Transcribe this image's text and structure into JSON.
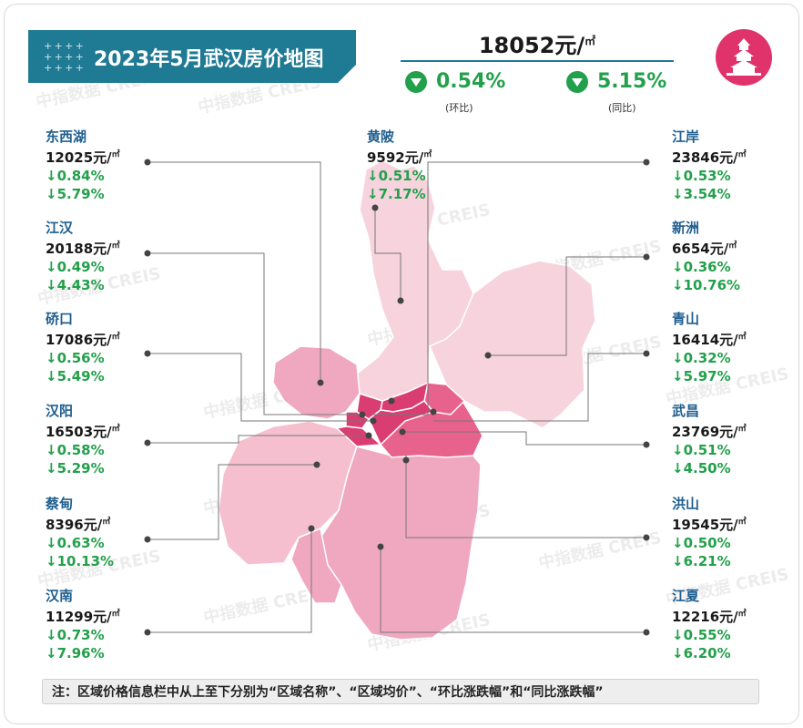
{
  "title": "2023年5月武汉房价地图",
  "overall": {
    "price_value": "18052元/",
    "price_unit": "㎡",
    "mom_value": "0.54%",
    "mom_label": "(环比)",
    "yoy_value": "5.15%",
    "yoy_label": "(同比)"
  },
  "districts_left": [
    {
      "name": "东西湖",
      "price": "12025元/",
      "unit": "㎡",
      "mom": "↓0.84%",
      "yoy": "↓5.79%"
    },
    {
      "name": "江汉",
      "price": "20188元/",
      "unit": "㎡",
      "mom": "↓0.49%",
      "yoy": "↓4.43%"
    },
    {
      "name": "硚口",
      "price": "17086元/",
      "unit": "㎡",
      "mom": "↓0.56%",
      "yoy": "↓5.49%"
    },
    {
      "name": "汉阳",
      "price": "16503元/",
      "unit": "㎡",
      "mom": "↓0.58%",
      "yoy": "↓5.29%"
    },
    {
      "name": "蔡甸",
      "price": "8396元/",
      "unit": "㎡",
      "mom": "↓0.63%",
      "yoy": "↓10.13%"
    },
    {
      "name": "汉南",
      "price": "11299元/",
      "unit": "㎡",
      "mom": "↓0.73%",
      "yoy": "↓7.96%"
    }
  ],
  "district_center": {
    "name": "黄陂",
    "price": "9592元/",
    "unit": "㎡",
    "mom": "↓0.51%",
    "yoy": "↓7.17%"
  },
  "districts_right": [
    {
      "name": "江岸",
      "price": "23846元/",
      "unit": "㎡",
      "mom": "↓0.53%",
      "yoy": "↓3.54%"
    },
    {
      "name": "新洲",
      "price": "6654元/",
      "unit": "㎡",
      "mom": "↓0.36%",
      "yoy": "↓10.76%"
    },
    {
      "name": "青山",
      "price": "16414元/",
      "unit": "㎡",
      "mom": "↓0.32%",
      "yoy": "↓5.97%"
    },
    {
      "name": "武昌",
      "price": "23769元/",
      "unit": "㎡",
      "mom": "↓0.51%",
      "yoy": "↓4.50%"
    },
    {
      "name": "洪山",
      "price": "19545元/",
      "unit": "㎡",
      "mom": "↓0.50%",
      "yoy": "↓6.21%"
    },
    {
      "name": "江夏",
      "price": "12216元/",
      "unit": "㎡",
      "mom": "↓0.55%",
      "yoy": "↓6.20%"
    }
  ],
  "watermark": "中指数据 CREIS",
  "note": "注：区域价格信息栏中从上至下分别为“区域名称”、“区域均价”、“环比涨跌幅”和“同比涨跌幅”",
  "colors": {
    "banner": "#1f7a93",
    "green": "#22a04b",
    "name_blue": "#1f5f8f",
    "map_light": "#f7d3de",
    "map_mid": "#f0a8c0",
    "map_dark": "#e8628e",
    "map_core": "#d93d72",
    "logo": "#e0336b"
  },
  "icons": [
    "down-triangle-icon",
    "city-tower-logo-icon"
  ]
}
